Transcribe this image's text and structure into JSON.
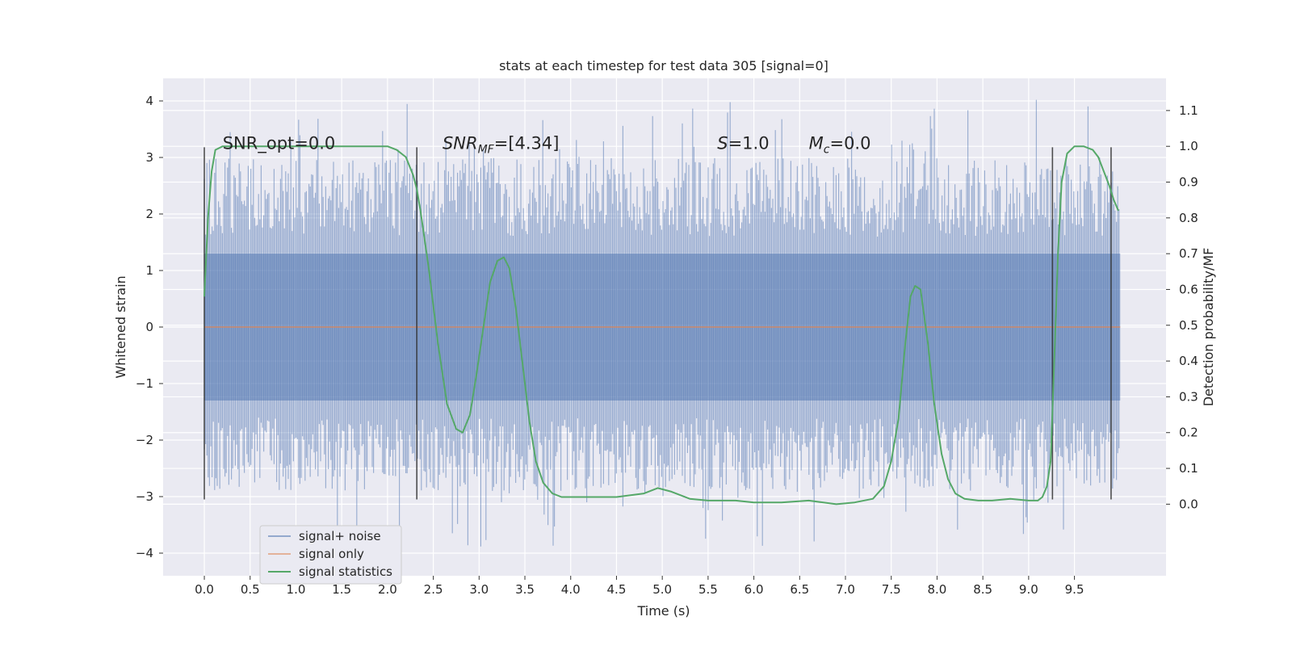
{
  "chart_data": {
    "type": "line",
    "title": "stats at each timestep for test data 305 [signal=0]",
    "xlabel": "Time (s)",
    "ylabel_left": "Whitened strain",
    "ylabel_right": "Detection probability/MF",
    "xlim": [
      -0.45,
      10.5
    ],
    "ylim_left": [
      -4.4,
      4.4
    ],
    "ylim_right": [
      -0.2,
      1.19
    ],
    "x_ticks": [
      "0.0",
      "0.5",
      "1.0",
      "1.5",
      "2.0",
      "2.5",
      "3.0",
      "3.5",
      "4.0",
      "4.5",
      "5.0",
      "5.5",
      "6.0",
      "6.5",
      "7.0",
      "7.5",
      "8.0",
      "8.5",
      "9.0",
      "9.5"
    ],
    "y_ticks_left": [
      "−4",
      "−3",
      "−2",
      "−1",
      "0",
      "1",
      "2",
      "3",
      "4"
    ],
    "y_ticks_right": [
      "0.0",
      "0.1",
      "0.2",
      "0.3",
      "0.4",
      "0.5",
      "0.6",
      "0.7",
      "0.8",
      "0.9",
      "1.0",
      "1.1"
    ],
    "grid": true,
    "legend_position": "lower-left",
    "annotations": [
      {
        "text": "SNR_opt=0.0",
        "x": 0.2,
        "y": 3.15
      },
      {
        "text": "SNR",
        "sub": "MF",
        "rest": "=[4.34]",
        "x": 2.6,
        "y": 3.15
      },
      {
        "text": "S",
        "rest": "=1.0",
        "x": 5.6,
        "y": 3.15
      },
      {
        "text": "M",
        "sub": "c",
        "rest": "=0.0",
        "x": 6.6,
        "y": 3.15
      }
    ],
    "vertical_markers": [
      0.0,
      2.32,
      9.26,
      9.9
    ],
    "marker_range": [
      -3.05,
      3.18
    ],
    "series": [
      {
        "name": "signal+ noise",
        "color": "#4c72b0",
        "axis": "left",
        "style": "noise",
        "x_range": [
          0.0,
          10.0
        ],
        "band_limits": [
          -1.3,
          1.3
        ],
        "typical_extent": [
          -2.9,
          3.0
        ],
        "peak_range": [
          -3.9,
          4.05
        ]
      },
      {
        "name": "signal only",
        "color": "#dd8452",
        "axis": "left",
        "x": [
          0.0,
          10.0
        ],
        "values": [
          0.0,
          0.0
        ]
      },
      {
        "name": "signal statistics",
        "color": "#55a868",
        "axis": "right",
        "x": [
          0.0,
          0.04,
          0.08,
          0.12,
          0.2,
          0.3,
          0.5,
          1.0,
          1.5,
          2.0,
          2.1,
          2.2,
          2.28,
          2.32,
          2.36,
          2.45,
          2.55,
          2.65,
          2.75,
          2.82,
          2.9,
          2.97,
          3.05,
          3.12,
          3.2,
          3.27,
          3.33,
          3.4,
          3.48,
          3.55,
          3.62,
          3.7,
          3.8,
          3.9,
          4.0,
          4.2,
          4.5,
          4.8,
          4.95,
          5.1,
          5.3,
          5.5,
          5.8,
          6.0,
          6.3,
          6.6,
          6.9,
          7.1,
          7.3,
          7.42,
          7.5,
          7.58,
          7.65,
          7.71,
          7.76,
          7.82,
          7.9,
          7.97,
          8.05,
          8.12,
          8.2,
          8.3,
          8.45,
          8.6,
          8.8,
          9.0,
          9.1,
          9.15,
          9.2,
          9.24,
          9.28,
          9.32,
          9.36,
          9.42,
          9.5,
          9.6,
          9.7,
          9.76,
          9.82,
          9.88,
          9.93,
          9.98
        ],
        "values": [
          0.58,
          0.8,
          0.93,
          0.99,
          1.0,
          1.0,
          1.0,
          1.0,
          1.0,
          1.0,
          0.99,
          0.97,
          0.92,
          0.88,
          0.82,
          0.66,
          0.45,
          0.28,
          0.21,
          0.2,
          0.25,
          0.36,
          0.5,
          0.62,
          0.68,
          0.69,
          0.66,
          0.55,
          0.38,
          0.23,
          0.12,
          0.06,
          0.03,
          0.02,
          0.02,
          0.02,
          0.02,
          0.03,
          0.045,
          0.035,
          0.015,
          0.01,
          0.01,
          0.005,
          0.005,
          0.01,
          0.0,
          0.005,
          0.015,
          0.05,
          0.12,
          0.24,
          0.44,
          0.58,
          0.61,
          0.6,
          0.45,
          0.28,
          0.14,
          0.07,
          0.03,
          0.015,
          0.01,
          0.01,
          0.015,
          0.01,
          0.01,
          0.02,
          0.05,
          0.12,
          0.4,
          0.7,
          0.9,
          0.98,
          1.0,
          1.0,
          0.99,
          0.97,
          0.93,
          0.89,
          0.85,
          0.82
        ]
      }
    ]
  }
}
